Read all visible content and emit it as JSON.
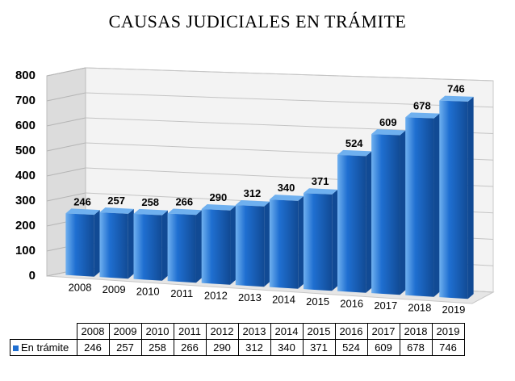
{
  "chart_data": {
    "type": "bar",
    "title": "CAUSAS JUDICIALES EN TRÁMITE",
    "xlabel": "",
    "ylabel": "",
    "categories": [
      "2008",
      "2009",
      "2010",
      "2011",
      "2012",
      "2013",
      "2014",
      "2015",
      "2016",
      "2017",
      "2018",
      "2019"
    ],
    "series": [
      {
        "name": "En trámite",
        "values": [
          246,
          257,
          258,
          266,
          290,
          312,
          340,
          371,
          524,
          609,
          678,
          746
        ]
      }
    ],
    "ylim": [
      0,
      800
    ],
    "yticks": [
      0,
      100,
      200,
      300,
      400,
      500,
      600,
      700,
      800
    ],
    "grid": true,
    "legend": "data-table-below",
    "colors": {
      "bar": "#1f6fd1",
      "bar_top": "#6fb0ef",
      "bar_side": "#114a94"
    }
  }
}
